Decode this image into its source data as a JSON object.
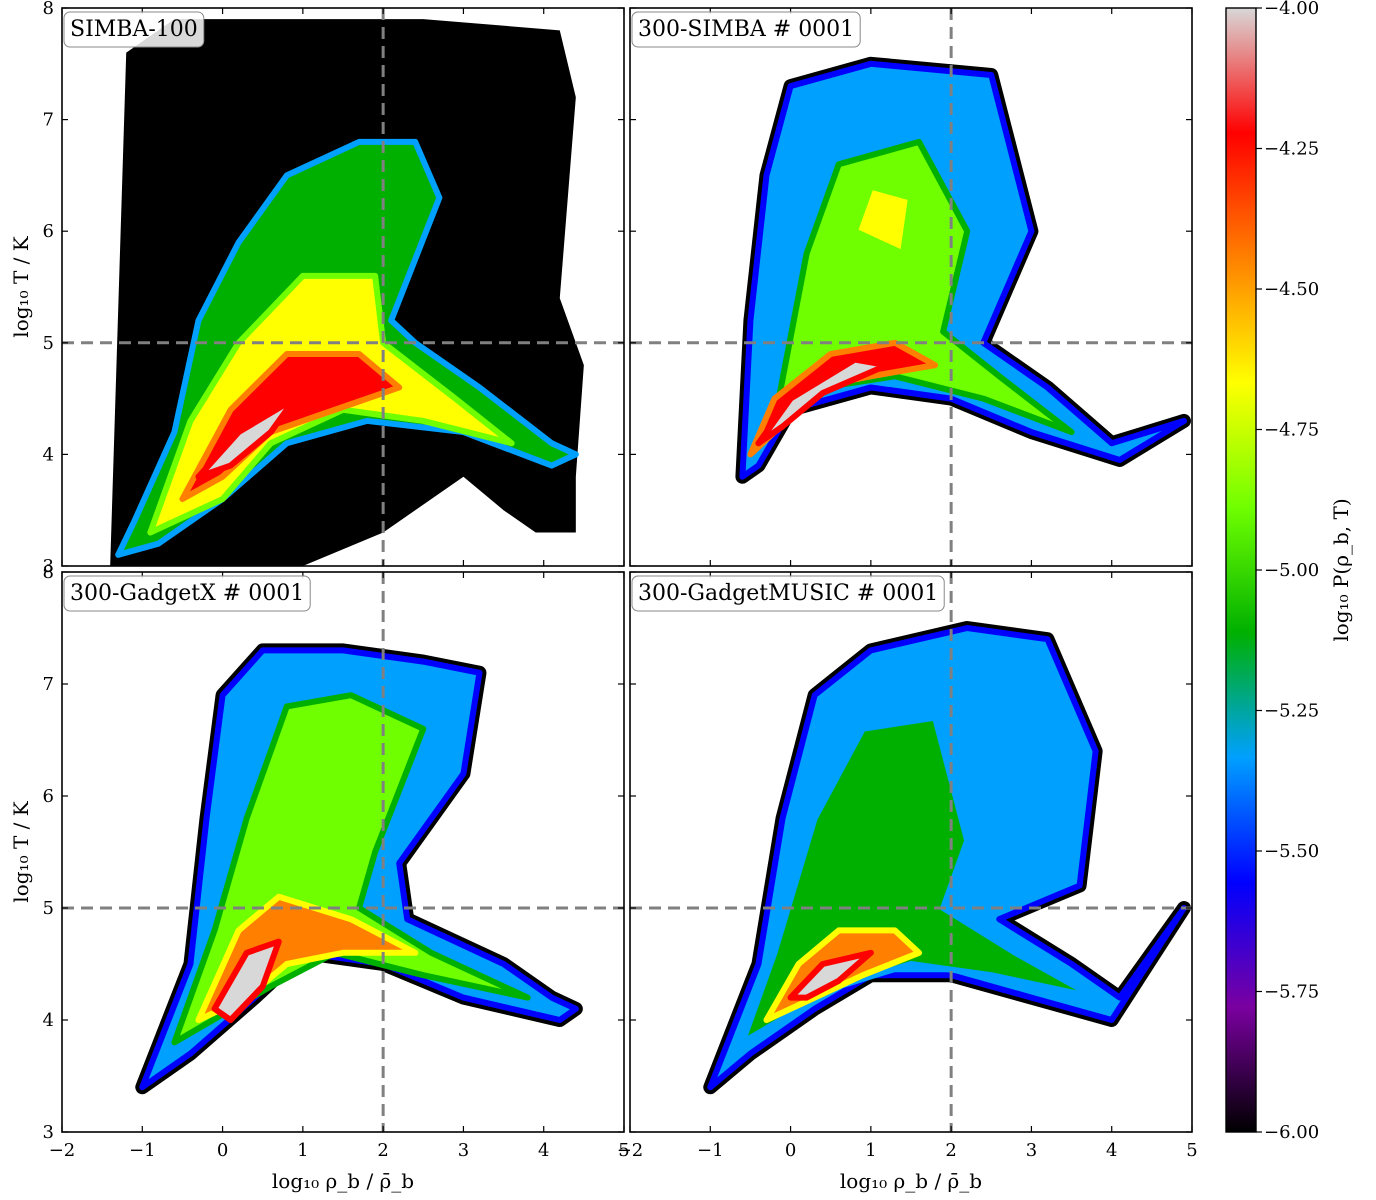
{
  "figure": {
    "x_axis_label": "log₁₀ ρ_b / ρ̄_b",
    "y_axis_label": "log₁₀ T / K",
    "colorbar_label": "log₁₀ P(ρ_b, T)"
  },
  "colors": {
    "colormap": [
      "#000000",
      "#7a00a0",
      "#0000ff",
      "#00a0ff",
      "#00b000",
      "#70ff00",
      "#ffff00",
      "#ff8000",
      "#ff0000",
      "#d8d8d8"
    ],
    "reference_line": "#808080",
    "background": "#ffffff"
  },
  "chart_data": [
    {
      "type": "heatmap",
      "title": "SIMBA-100",
      "xlim": [
        -2,
        5
      ],
      "ylim": [
        3,
        8
      ],
      "x_ticks": [
        -2,
        -1,
        0,
        1,
        2,
        3,
        4,
        5
      ],
      "y_ticks": [
        3,
        4,
        5,
        6,
        7,
        8
      ],
      "reference_lines": {
        "x": 2,
        "y": 5
      },
      "background_fill": "black",
      "color_range": [
        -6.0,
        -4.0
      ],
      "peak_region": {
        "x": [
          0.2,
          1.5
        ],
        "y": [
          4.2,
          4.9
        ]
      }
    },
    {
      "type": "heatmap",
      "title": "300-SIMBA # 0001",
      "xlim": [
        -2,
        5
      ],
      "ylim": [
        3,
        8
      ],
      "x_ticks": [
        -2,
        -1,
        0,
        1,
        2,
        3,
        4,
        5
      ],
      "y_ticks": [
        3,
        4,
        5,
        6,
        7,
        8
      ],
      "reference_lines": {
        "x": 2,
        "y": 5
      },
      "background_fill": "white",
      "color_range": [
        -6.0,
        -4.0
      ],
      "peak_region": {
        "x": [
          -0.5,
          1.0
        ],
        "y": [
          4.2,
          4.9
        ]
      }
    },
    {
      "type": "heatmap",
      "title": "300-GadgetX # 0001",
      "xlim": [
        -2,
        5
      ],
      "ylim": [
        3,
        8
      ],
      "x_ticks": [
        -2,
        -1,
        0,
        1,
        2,
        3,
        4,
        5
      ],
      "x_tick_labels": [
        "−2",
        "−1",
        "0",
        "1",
        "2",
        "3",
        "4",
        "5"
      ],
      "y_ticks": [
        3,
        4,
        5,
        6,
        7,
        8
      ],
      "y_tick_labels": [
        "3",
        "4",
        "5",
        "6",
        "7",
        "8"
      ],
      "reference_lines": {
        "x": 2,
        "y": 5
      },
      "background_fill": "white",
      "color_range": [
        -6.0,
        -4.0
      ],
      "peak_region": {
        "x": [
          0.3,
          1.2
        ],
        "y": [
          4.0,
          4.9
        ]
      }
    },
    {
      "type": "heatmap",
      "title": "300-GadgetMUSIC # 0001",
      "xlim": [
        -2,
        5
      ],
      "ylim": [
        3,
        8
      ],
      "x_ticks": [
        -2,
        -1,
        0,
        1,
        2,
        3,
        4,
        5
      ],
      "x_tick_labels": [
        "−2",
        "−1",
        "0",
        "1",
        "2",
        "3",
        "4",
        "5"
      ],
      "y_ticks": [
        3,
        4,
        5,
        6,
        7,
        8
      ],
      "reference_lines": {
        "x": 2,
        "y": 5
      },
      "background_fill": "white",
      "color_range": [
        -6.0,
        -4.0
      ],
      "peak_region": {
        "x": [
          0.4,
          1.2
        ],
        "y": [
          4.3,
          4.7
        ]
      }
    }
  ],
  "colorbar": {
    "range": [
      -6.0,
      -4.0
    ],
    "ticks": [
      -4.0,
      -4.25,
      -4.5,
      -4.75,
      -5.0,
      -5.25,
      -5.5,
      -5.75,
      -6.0
    ],
    "tick_labels": [
      "−4.00",
      "−4.25",
      "−4.50",
      "−4.75",
      "−5.00",
      "−5.25",
      "−5.50",
      "−5.75",
      "−6.00"
    ]
  }
}
